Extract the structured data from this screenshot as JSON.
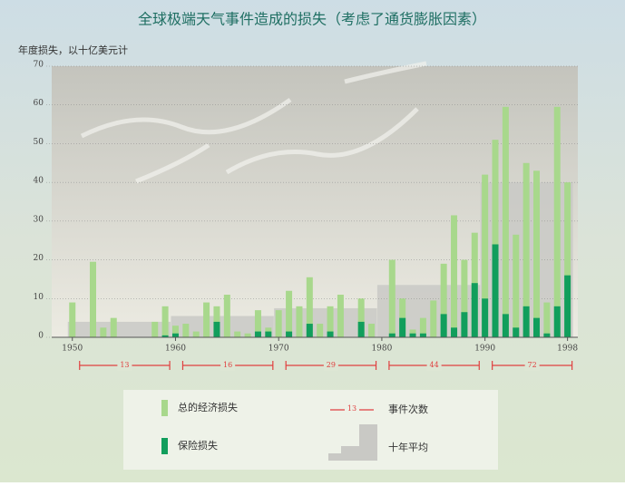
{
  "chart_data": {
    "type": "bar",
    "title": "全球极端天气事件造成的损失（考虑了通货膨胀因素）",
    "y_label": "年度损失，以十亿美元计",
    "x": [
      1950,
      1951,
      1952,
      1953,
      1954,
      1955,
      1956,
      1957,
      1958,
      1959,
      1960,
      1961,
      1962,
      1963,
      1964,
      1965,
      1966,
      1967,
      1968,
      1969,
      1970,
      1971,
      1972,
      1973,
      1974,
      1975,
      1976,
      1977,
      1978,
      1979,
      1980,
      1981,
      1982,
      1983,
      1984,
      1985,
      1986,
      1987,
      1988,
      1989,
      1990,
      1991,
      1992,
      1993,
      1994,
      1995,
      1996,
      1997,
      1998
    ],
    "series": [
      {
        "name": "总的经济损失",
        "color": "#a8d88c",
        "values": [
          9,
          0,
          19.5,
          2.5,
          5,
          0,
          0,
          0,
          4,
          8,
          3,
          3.5,
          1.5,
          9,
          8,
          11,
          1.5,
          1,
          7,
          2.5,
          7,
          12,
          8,
          15.5,
          3.5,
          8,
          11,
          0,
          10,
          3.5,
          0,
          20,
          10,
          2,
          5,
          9.5,
          19,
          31.5,
          20,
          27,
          42,
          51,
          59.5,
          26.5,
          45,
          43,
          9,
          59.5,
          40
        ]
      },
      {
        "name": "保险损失",
        "color": "#119e5c",
        "values": [
          0,
          0,
          0,
          0,
          0,
          0,
          0,
          0,
          0,
          0.5,
          1,
          0,
          0,
          0,
          4,
          0,
          0,
          0,
          1.5,
          1.5,
          0,
          1.5,
          0,
          3.5,
          0,
          1.5,
          0,
          0,
          4,
          0,
          0,
          1,
          5,
          1,
          1,
          0,
          6,
          2.5,
          6.5,
          14,
          10,
          24,
          6,
          2.5,
          8,
          5,
          1,
          8,
          16
        ]
      }
    ],
    "decade_average": {
      "name": "十年平均",
      "color": "#c9c9c5",
      "periods": [
        [
          1950,
          1959
        ],
        [
          1960,
          1969
        ],
        [
          1970,
          1979
        ],
        [
          1980,
          1989
        ],
        [
          1990,
          1998
        ]
      ],
      "values": [
        4,
        5.5,
        7.5,
        13.5,
        40
      ]
    },
    "events": {
      "name": "事件次数",
      "color": "#e04040",
      "values": [
        13,
        16,
        29,
        44,
        72
      ]
    },
    "xlim": [
      1948,
      1999
    ],
    "xticks": [
      1950,
      1960,
      1970,
      1980,
      1990,
      1998
    ],
    "ylim": [
      0,
      70
    ],
    "yticks": [
      0,
      10,
      20,
      30,
      40,
      50,
      60,
      70
    ],
    "grid": true
  }
}
